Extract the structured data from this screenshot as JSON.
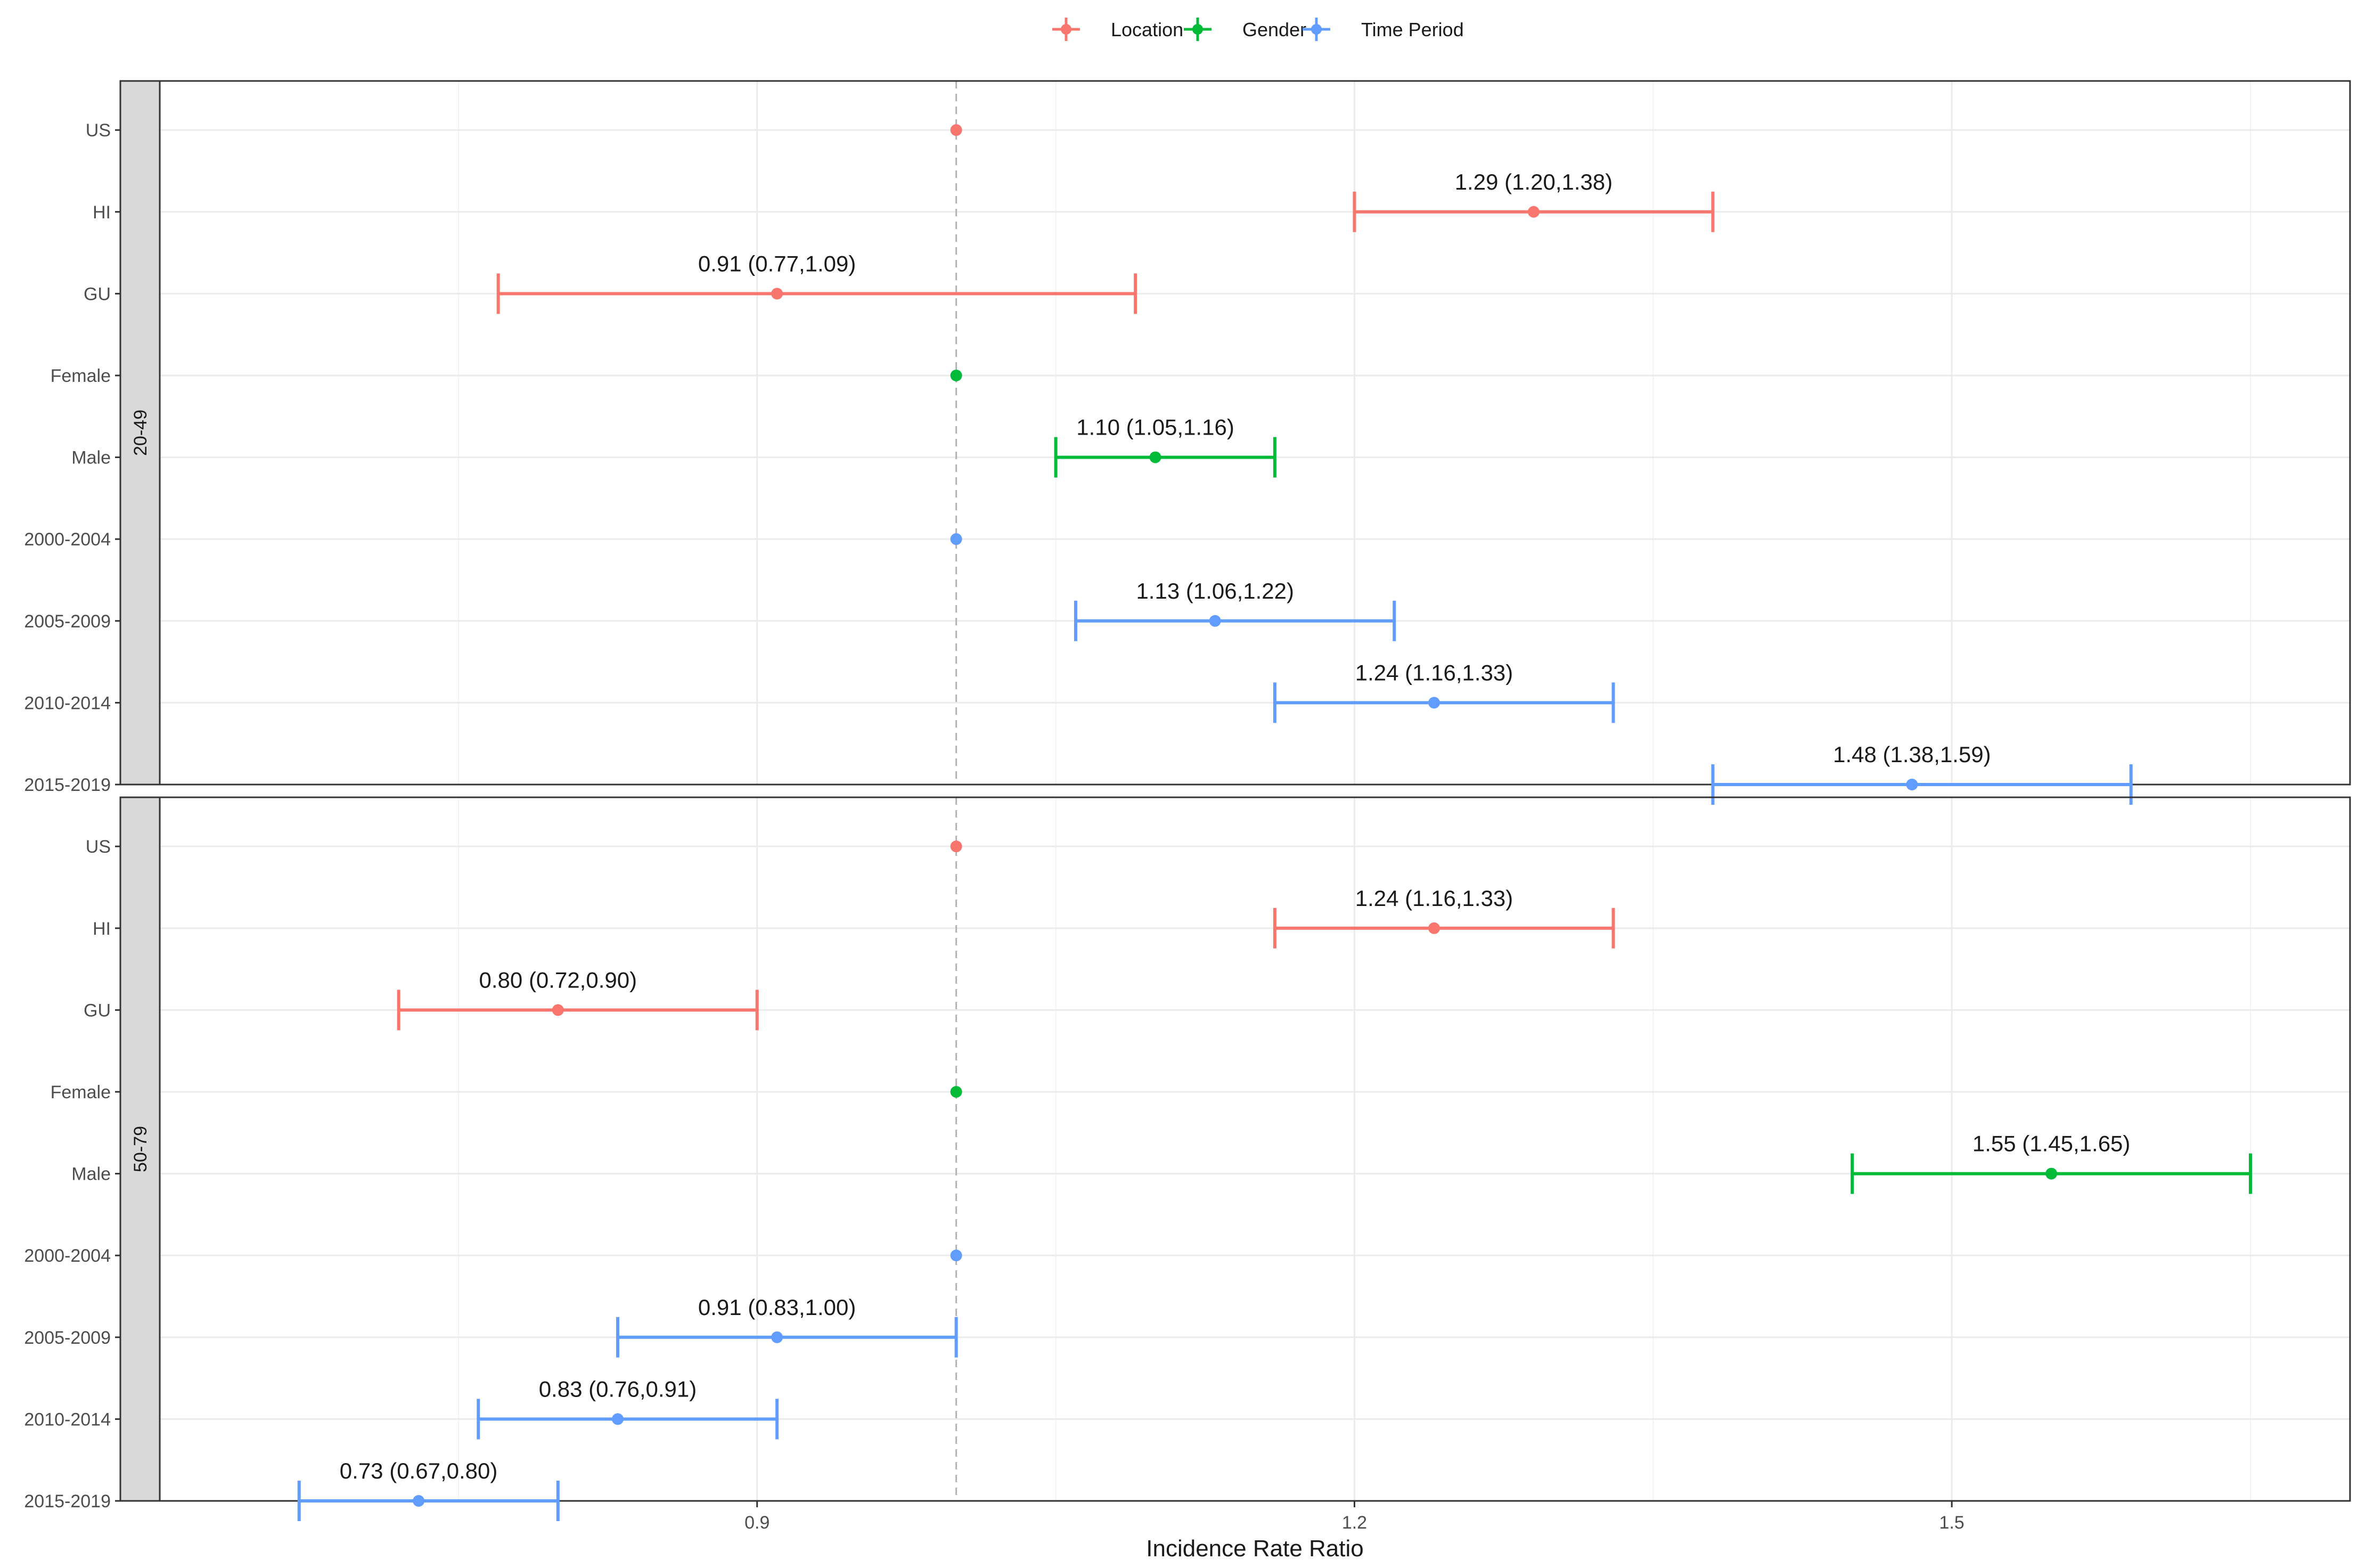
{
  "chart_data": {
    "type": "forest",
    "xlabel": "Incidence Rate Ratio",
    "xlim": [
      0.6,
      1.7
    ],
    "xticks": [
      0.9,
      1.2,
      1.5
    ],
    "xtick_labels": [
      "0.9",
      "1.2",
      "1.5"
    ],
    "reference_line": 1.0,
    "legend": {
      "position": "top",
      "entries": [
        {
          "name": "Location",
          "color": "#F8766D"
        },
        {
          "name": "Gender",
          "color": "#00BA38"
        },
        {
          "name": "Time Period",
          "color": "#619CFF"
        }
      ]
    },
    "categories": [
      "US",
      "HI",
      "GU",
      "Female",
      "Male",
      "2000-2004",
      "2005-2009",
      "2010-2014",
      "2015-2019"
    ],
    "panels": [
      {
        "strip": "20-49",
        "rows": [
          {
            "label": "US",
            "group": "Location",
            "est": 1.0,
            "lo": null,
            "hi": null,
            "text": ""
          },
          {
            "label": "HI",
            "group": "Location",
            "est": 1.29,
            "lo": 1.2,
            "hi": 1.38,
            "text": "1.29 (1.20,1.38)"
          },
          {
            "label": "GU",
            "group": "Location",
            "est": 0.91,
            "lo": 0.77,
            "hi": 1.09,
            "text": "0.91 (0.77,1.09)"
          },
          {
            "label": "Female",
            "group": "Gender",
            "est": 1.0,
            "lo": null,
            "hi": null,
            "text": ""
          },
          {
            "label": "Male",
            "group": "Gender",
            "est": 1.1,
            "lo": 1.05,
            "hi": 1.16,
            "text": "1.10 (1.05,1.16)"
          },
          {
            "label": "2000-2004",
            "group": "Time Period",
            "est": 1.0,
            "lo": null,
            "hi": null,
            "text": ""
          },
          {
            "label": "2005-2009",
            "group": "Time Period",
            "est": 1.13,
            "lo": 1.06,
            "hi": 1.22,
            "text": "1.13 (1.06,1.22)"
          },
          {
            "label": "2010-2014",
            "group": "Time Period",
            "est": 1.24,
            "lo": 1.16,
            "hi": 1.33,
            "text": "1.24 (1.16,1.33)"
          },
          {
            "label": "2015-2019",
            "group": "Time Period",
            "est": 1.48,
            "lo": 1.38,
            "hi": 1.59,
            "text": "1.48 (1.38,1.59)"
          }
        ]
      },
      {
        "strip": "50-79",
        "rows": [
          {
            "label": "US",
            "group": "Location",
            "est": 1.0,
            "lo": null,
            "hi": null,
            "text": ""
          },
          {
            "label": "HI",
            "group": "Location",
            "est": 1.24,
            "lo": 1.16,
            "hi": 1.33,
            "text": "1.24 (1.16,1.33)"
          },
          {
            "label": "GU",
            "group": "Location",
            "est": 0.8,
            "lo": 0.72,
            "hi": 0.9,
            "text": "0.80 (0.72,0.90)"
          },
          {
            "label": "Female",
            "group": "Gender",
            "est": 1.0,
            "lo": null,
            "hi": null,
            "text": ""
          },
          {
            "label": "Male",
            "group": "Gender",
            "est": 1.55,
            "lo": 1.45,
            "hi": 1.65,
            "text": "1.55 (1.45,1.65)"
          },
          {
            "label": "2000-2004",
            "group": "Time Period",
            "est": 1.0,
            "lo": null,
            "hi": null,
            "text": ""
          },
          {
            "label": "2005-2009",
            "group": "Time Period",
            "est": 0.91,
            "lo": 0.83,
            "hi": 1.0,
            "text": "0.91 (0.83,1.00)"
          },
          {
            "label": "2010-2014",
            "group": "Time Period",
            "est": 0.83,
            "lo": 0.76,
            "hi": 0.91,
            "text": "0.83 (0.76,0.91)"
          },
          {
            "label": "2015-2019",
            "group": "Time Period",
            "est": 0.73,
            "lo": 0.67,
            "hi": 0.8,
            "text": "0.73 (0.67,0.80)"
          }
        ]
      }
    ]
  }
}
